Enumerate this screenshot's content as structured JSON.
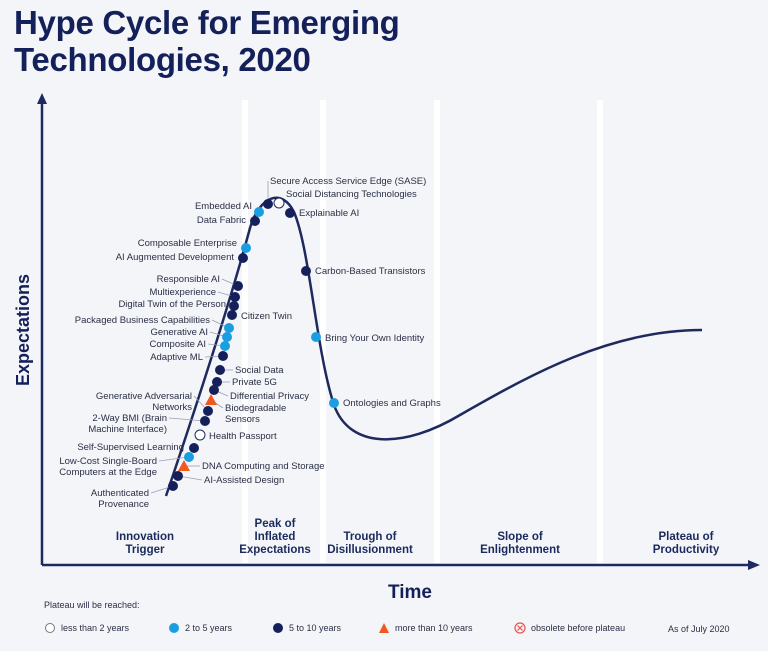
{
  "title_line1": "Hype Cycle for Emerging",
  "title_line2": "Technologies, 2020",
  "y_axis_label": "Expectations",
  "x_axis_label": "Time",
  "phases": [
    {
      "line1": "Innovation",
      "line2": "Trigger"
    },
    {
      "line1": "Peak of",
      "line2": "Inflated",
      "line3": "Expectations"
    },
    {
      "line1": "Trough of",
      "line2": "Disillusionment"
    },
    {
      "line1": "Slope of",
      "line2": "Enlightenment"
    },
    {
      "line1": "Plateau of",
      "line2": "Productivity"
    }
  ],
  "colors": {
    "lt2": "#ffffff",
    "y2to5": "#1a9ee0",
    "y5to10": "#15205a",
    "gt10": "#f2591f",
    "obsolete": "#e8554e",
    "curve": "#1e2a5e"
  },
  "technologies": [
    {
      "name": "Secure Access Service Edge (SASE)",
      "plateau": "y5to10"
    },
    {
      "name": "Social Distancing Technologies",
      "plateau": "lt2"
    },
    {
      "name": "Embedded AI",
      "plateau": "y2to5"
    },
    {
      "name": "Data Fabric",
      "plateau": "y5to10"
    },
    {
      "name": "Explainable AI",
      "plateau": "y5to10"
    },
    {
      "name": "Composable Enterprise",
      "plateau": "y2to5"
    },
    {
      "name": "AI Augmented Development",
      "plateau": "y5to10"
    },
    {
      "name": "Carbon-Based Transistors",
      "plateau": "y5to10"
    },
    {
      "name": "Responsible AI",
      "plateau": "y5to10"
    },
    {
      "name": "Multiexperience",
      "plateau": "y5to10"
    },
    {
      "name": "Digital Twin of the Person",
      "plateau": "y5to10"
    },
    {
      "name": "Citizen Twin",
      "plateau": "y5to10"
    },
    {
      "name": "Packaged Business Capabilities",
      "plateau": "y2to5"
    },
    {
      "name": "Generative AI",
      "plateau": "y2to5"
    },
    {
      "name": "Composite AI",
      "plateau": "y2to5"
    },
    {
      "name": "Bring Your Own Identity",
      "plateau": "y2to5"
    },
    {
      "name": "Adaptive ML",
      "plateau": "y5to10"
    },
    {
      "name": "Social Data",
      "plateau": "y5to10"
    },
    {
      "name": "Private 5G",
      "plateau": "y5to10"
    },
    {
      "name": "Differential Privacy",
      "plateau": "y5to10"
    },
    {
      "name": "Biodegradable Sensors",
      "plateau": "gt10"
    },
    {
      "name": "Generative Adversarial Networks",
      "plateau": "y5to10"
    },
    {
      "name": "Ontologies and Graphs",
      "plateau": "y2to5"
    },
    {
      "name": "2-Way BMI (Brain Machine Interface)",
      "plateau": "y5to10"
    },
    {
      "name": "Health Passport",
      "plateau": "lt2"
    },
    {
      "name": "Self-Supervised Learning",
      "plateau": "y5to10"
    },
    {
      "name": "Low-Cost Single-Board Computers at the Edge",
      "plateau": "y2to5"
    },
    {
      "name": "DNA Computing and Storage",
      "plateau": "gt10"
    },
    {
      "name": "AI-Assisted Design",
      "plateau": "y5to10"
    },
    {
      "name": "Authenticated Provenance",
      "plateau": "y5to10"
    }
  ],
  "legend": {
    "heading": "Plateau will be reached:",
    "items": [
      {
        "key": "lt2",
        "label": "less than 2 years"
      },
      {
        "key": "y2to5",
        "label": "2 to 5 years"
      },
      {
        "key": "y5to10",
        "label": "5 to 10 years"
      },
      {
        "key": "gt10",
        "label": "more than 10 years"
      },
      {
        "key": "obsolete",
        "label": "obsolete before plateau"
      }
    ],
    "as_of": "As of July 2020"
  }
}
